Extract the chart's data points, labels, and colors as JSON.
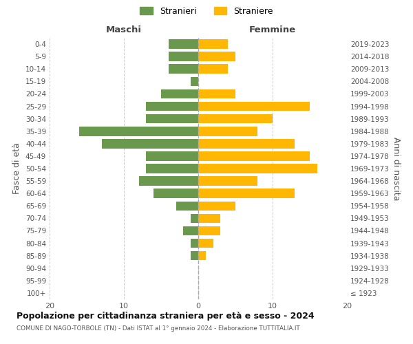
{
  "age_groups": [
    "100+",
    "95-99",
    "90-94",
    "85-89",
    "80-84",
    "75-79",
    "70-74",
    "65-69",
    "60-64",
    "55-59",
    "50-54",
    "45-49",
    "40-44",
    "35-39",
    "30-34",
    "25-29",
    "20-24",
    "15-19",
    "10-14",
    "5-9",
    "0-4"
  ],
  "birth_years": [
    "≤ 1923",
    "1924-1928",
    "1929-1933",
    "1934-1938",
    "1939-1943",
    "1944-1948",
    "1949-1953",
    "1954-1958",
    "1959-1963",
    "1964-1968",
    "1969-1973",
    "1974-1978",
    "1979-1983",
    "1984-1988",
    "1989-1993",
    "1994-1998",
    "1999-2003",
    "2004-2008",
    "2009-2013",
    "2014-2018",
    "2019-2023"
  ],
  "maschi": [
    0,
    0,
    0,
    1,
    1,
    2,
    1,
    3,
    6,
    8,
    7,
    7,
    13,
    16,
    7,
    7,
    5,
    1,
    4,
    4,
    4
  ],
  "femmine": [
    0,
    0,
    0,
    1,
    2,
    3,
    3,
    5,
    13,
    8,
    16,
    15,
    13,
    8,
    10,
    15,
    5,
    0,
    4,
    5,
    4
  ],
  "maschi_color": "#6a994e",
  "femmine_color": "#ffb703",
  "grid_color": "#cccccc",
  "title": "Popolazione per cittadinanza straniera per età e sesso - 2024",
  "subtitle": "COMUNE DI NAGO-TORBOLE (TN) - Dati ISTAT al 1° gennaio 2024 - Elaborazione TUTTITALIA.IT",
  "ylabel_left": "Fasce di età",
  "ylabel_right": "Anni di nascita",
  "legend_maschi": "Stranieri",
  "legend_femmine": "Straniere",
  "xlim": 20,
  "xlabel_left": "Maschi",
  "xlabel_right": "Femmine"
}
